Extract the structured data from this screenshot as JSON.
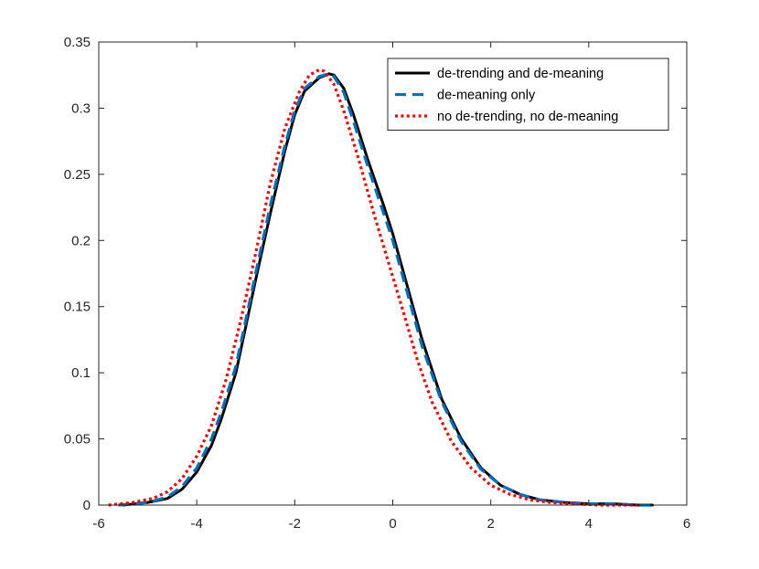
{
  "chart_data": {
    "type": "line",
    "title": "",
    "xlabel": "",
    "ylabel": "",
    "xlim": [
      -6,
      6
    ],
    "ylim": [
      0,
      0.35
    ],
    "xticks": [
      -6,
      -4,
      -2,
      0,
      2,
      4,
      6
    ],
    "xtick_labels": [
      "-6",
      "-4",
      "-2",
      "0",
      "2",
      "4",
      "6"
    ],
    "yticks": [
      0,
      0.05,
      0.1,
      0.15,
      0.2,
      0.25,
      0.3,
      0.35
    ],
    "ytick_labels": [
      "0",
      "0.05",
      "0.1",
      "0.15",
      "0.2",
      "0.25",
      "0.3",
      "0.35"
    ],
    "grid": false,
    "legend_position": "top-right",
    "series": [
      {
        "name": "de-trending and de-meaning",
        "color": "#000000",
        "style": "solid",
        "x": [
          -5.5,
          -5.0,
          -4.6,
          -4.3,
          -4.0,
          -3.7,
          -3.5,
          -3.2,
          -3.0,
          -2.8,
          -2.5,
          -2.2,
          -2.0,
          -1.8,
          -1.5,
          -1.3,
          -1.2,
          -1.0,
          -0.8,
          -0.5,
          -0.2,
          0.0,
          0.3,
          0.6,
          1.0,
          1.4,
          1.8,
          2.2,
          2.6,
          3.0,
          3.5,
          4.0,
          4.5,
          5.0,
          5.3
        ],
        "y": [
          0.0,
          0.002,
          0.005,
          0.012,
          0.025,
          0.045,
          0.065,
          0.1,
          0.135,
          0.17,
          0.22,
          0.268,
          0.295,
          0.313,
          0.323,
          0.326,
          0.325,
          0.315,
          0.295,
          0.26,
          0.228,
          0.205,
          0.165,
          0.125,
          0.08,
          0.05,
          0.028,
          0.015,
          0.008,
          0.004,
          0.002,
          0.001,
          0.001,
          0.0,
          0.0
        ]
      },
      {
        "name": "de-meaning only",
        "color": "#0072BD",
        "style": "dashed",
        "x": [
          -5.6,
          -5.0,
          -4.6,
          -4.3,
          -4.0,
          -3.7,
          -3.5,
          -3.2,
          -3.0,
          -2.8,
          -2.5,
          -2.2,
          -2.0,
          -1.8,
          -1.5,
          -1.3,
          -1.2,
          -1.0,
          -0.8,
          -0.5,
          -0.2,
          0.0,
          0.3,
          0.6,
          1.0,
          1.4,
          1.8,
          2.2,
          2.6,
          3.0,
          3.5,
          4.0,
          4.5,
          5.0,
          5.3
        ],
        "y": [
          0.0,
          0.002,
          0.006,
          0.014,
          0.028,
          0.05,
          0.07,
          0.105,
          0.14,
          0.175,
          0.226,
          0.272,
          0.298,
          0.315,
          0.324,
          0.326,
          0.324,
          0.312,
          0.29,
          0.255,
          0.222,
          0.2,
          0.16,
          0.12,
          0.078,
          0.048,
          0.027,
          0.015,
          0.008,
          0.004,
          0.002,
          0.001,
          0.001,
          0.0,
          0.0
        ]
      },
      {
        "name": "no de-trending, no de-meaning",
        "color": "#FF0000",
        "style": "dotted",
        "x": [
          -5.8,
          -5.3,
          -4.9,
          -4.6,
          -4.3,
          -4.0,
          -3.7,
          -3.4,
          -3.1,
          -2.8,
          -2.5,
          -2.2,
          -1.9,
          -1.7,
          -1.5,
          -1.4,
          -1.2,
          -1.0,
          -0.7,
          -0.4,
          -0.1,
          0.2,
          0.5,
          0.8,
          1.2,
          1.6,
          2.0,
          2.4,
          2.8,
          3.2,
          3.7,
          4.2,
          4.7,
          5.0
        ],
        "y": [
          0.0,
          0.002,
          0.005,
          0.01,
          0.02,
          0.037,
          0.06,
          0.095,
          0.14,
          0.19,
          0.243,
          0.285,
          0.313,
          0.325,
          0.329,
          0.328,
          0.318,
          0.298,
          0.262,
          0.222,
          0.185,
          0.148,
          0.11,
          0.078,
          0.048,
          0.028,
          0.015,
          0.008,
          0.004,
          0.002,
          0.001,
          0.0,
          0.0,
          0.0
        ]
      }
    ]
  }
}
